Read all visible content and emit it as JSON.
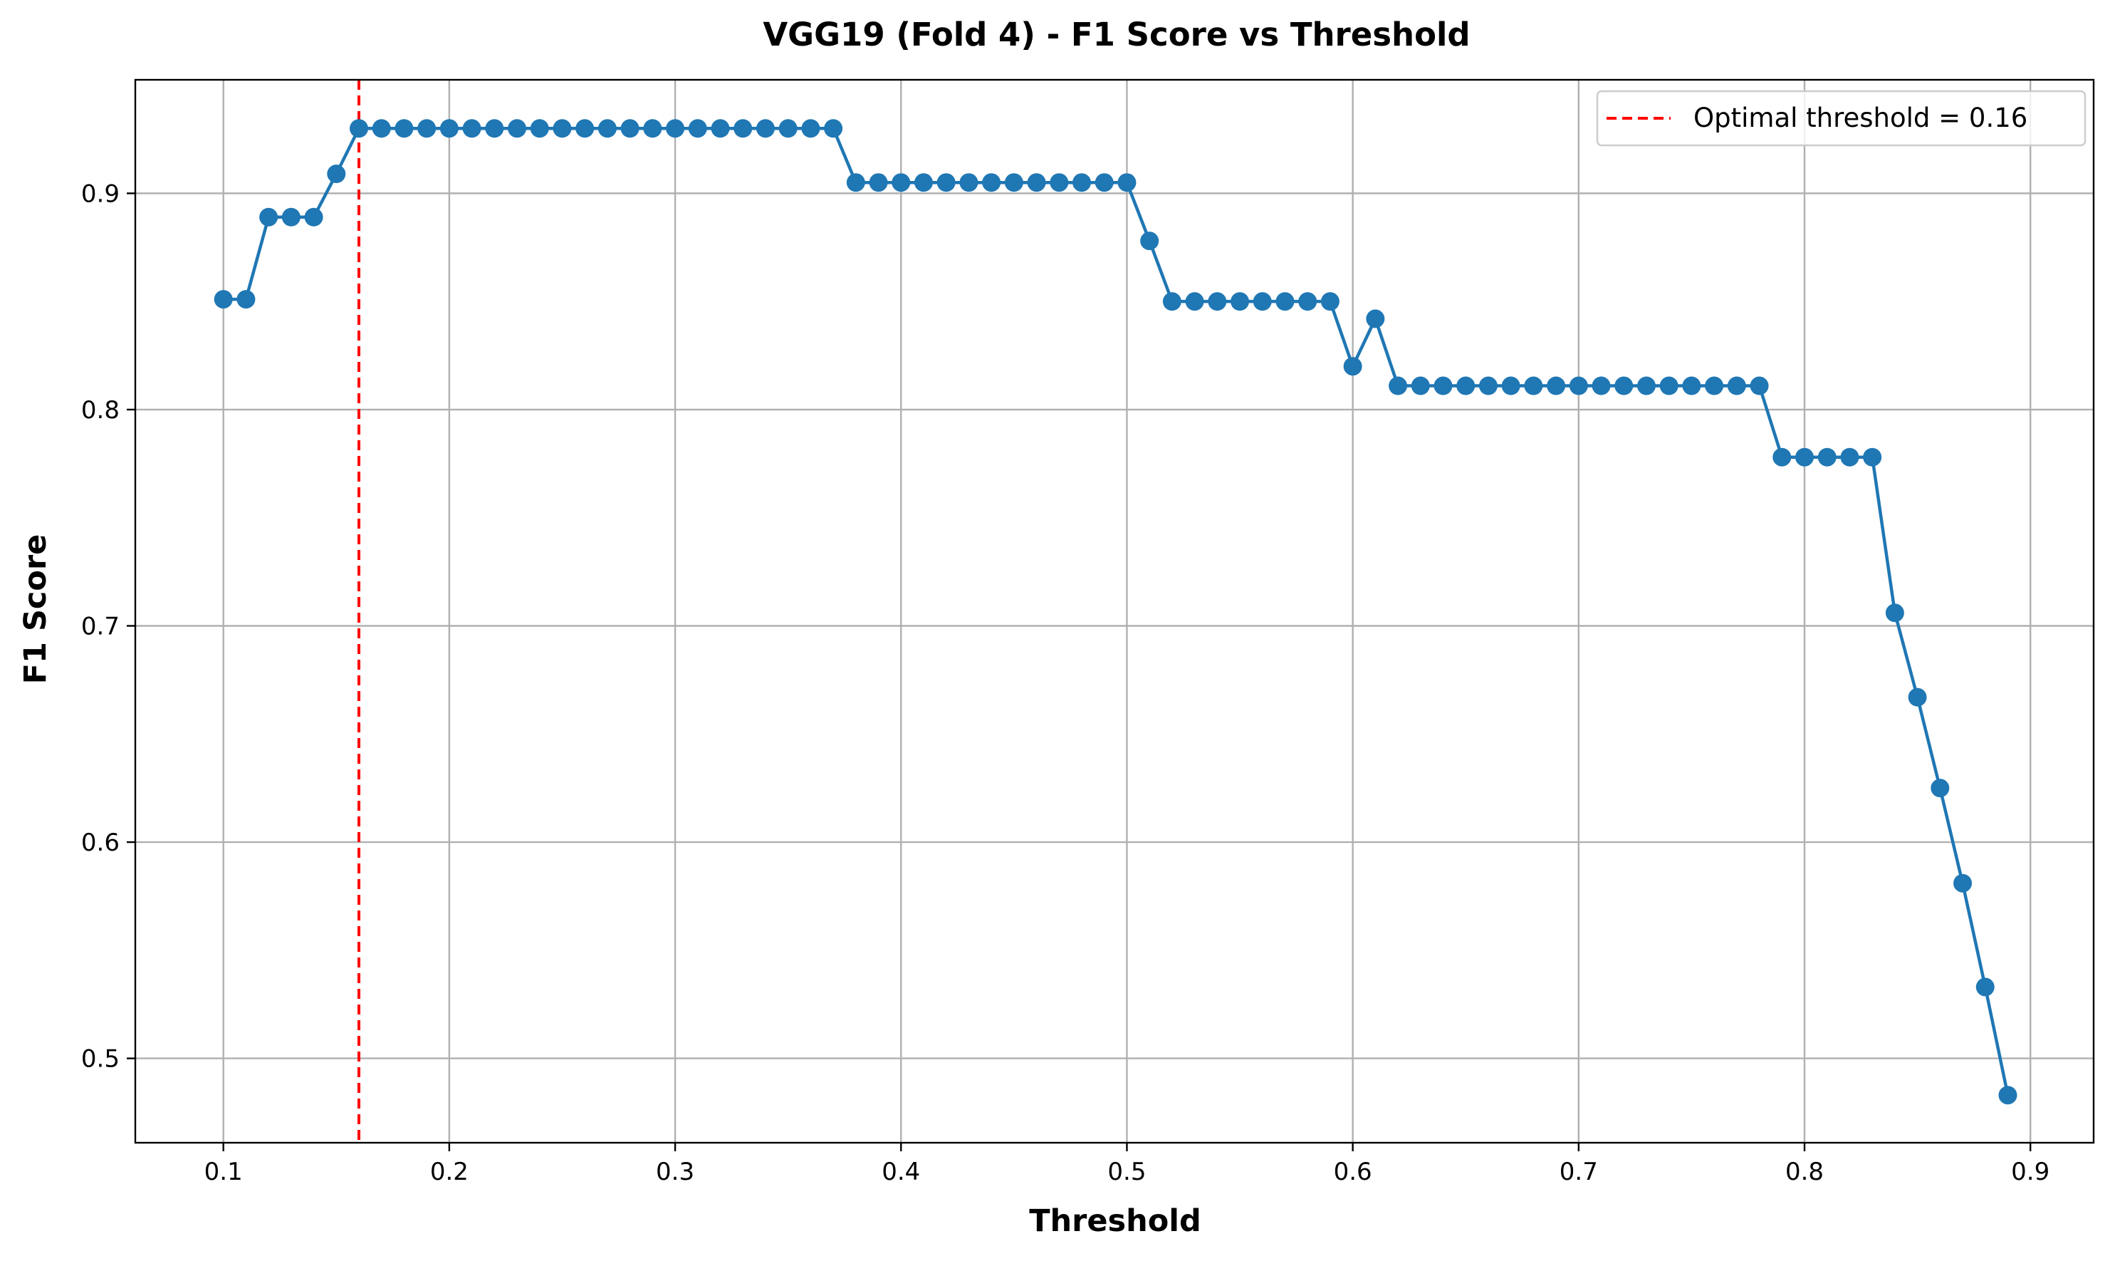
{
  "chart_data": {
    "type": "line",
    "title": "VGG19 (Fold 4) - F1 Score vs Threshold",
    "xlabel": "Threshold",
    "ylabel": "F1 Score",
    "xlim": [
      0.061,
      0.928
    ],
    "ylim": [
      0.461,
      0.9525
    ],
    "xticks": [
      0.1,
      0.2,
      0.3,
      0.4,
      0.5,
      0.6,
      0.7,
      0.8,
      0.9
    ],
    "xtick_labels": [
      "0.1",
      "0.2",
      "0.3",
      "0.4",
      "0.5",
      "0.6",
      "0.7",
      "0.8",
      "0.9"
    ],
    "yticks": [
      0.5,
      0.6,
      0.7,
      0.8,
      0.9
    ],
    "ytick_labels": [
      "0.5",
      "0.6",
      "0.7",
      "0.8",
      "0.9"
    ],
    "grid": true,
    "legend_position": "top-right",
    "series": [
      {
        "color": "#1f77b4",
        "marker": "circle",
        "x": [
          0.1,
          0.11,
          0.12,
          0.13,
          0.14,
          0.15,
          0.16,
          0.17,
          0.18,
          0.19,
          0.2,
          0.21,
          0.22,
          0.23,
          0.24,
          0.25,
          0.26,
          0.27,
          0.28,
          0.29,
          0.3,
          0.31,
          0.32,
          0.33,
          0.34,
          0.35,
          0.36,
          0.37,
          0.38,
          0.39,
          0.4,
          0.41,
          0.42,
          0.43,
          0.44,
          0.45,
          0.46,
          0.47,
          0.48,
          0.49,
          0.5,
          0.51,
          0.52,
          0.53,
          0.54,
          0.55,
          0.56,
          0.57,
          0.58,
          0.59,
          0.6,
          0.61,
          0.62,
          0.63,
          0.64,
          0.65,
          0.66,
          0.67,
          0.68,
          0.69,
          0.7,
          0.71,
          0.72,
          0.73,
          0.74,
          0.75,
          0.76,
          0.77,
          0.78,
          0.79,
          0.8,
          0.81,
          0.82,
          0.83,
          0.84,
          0.85,
          0.86,
          0.87,
          0.88,
          0.89
        ],
        "y": [
          0.851,
          0.851,
          0.889,
          0.889,
          0.889,
          0.909,
          0.93,
          0.93,
          0.93,
          0.93,
          0.93,
          0.93,
          0.93,
          0.93,
          0.93,
          0.93,
          0.93,
          0.93,
          0.93,
          0.93,
          0.93,
          0.93,
          0.93,
          0.93,
          0.93,
          0.93,
          0.93,
          0.93,
          0.905,
          0.905,
          0.905,
          0.905,
          0.905,
          0.905,
          0.905,
          0.905,
          0.905,
          0.905,
          0.905,
          0.905,
          0.905,
          0.878,
          0.85,
          0.85,
          0.85,
          0.85,
          0.85,
          0.85,
          0.85,
          0.85,
          0.82,
          0.842,
          0.811,
          0.811,
          0.811,
          0.811,
          0.811,
          0.811,
          0.811,
          0.811,
          0.811,
          0.811,
          0.811,
          0.811,
          0.811,
          0.811,
          0.811,
          0.811,
          0.811,
          0.778,
          0.778,
          0.778,
          0.778,
          0.778,
          0.706,
          0.667,
          0.625,
          0.581,
          0.533,
          0.483
        ]
      }
    ],
    "reference_line": {
      "orientation": "vertical",
      "x": 0.16,
      "color": "#ff0000",
      "style": "dashed",
      "label": "Optimal threshold = 0.16"
    }
  }
}
